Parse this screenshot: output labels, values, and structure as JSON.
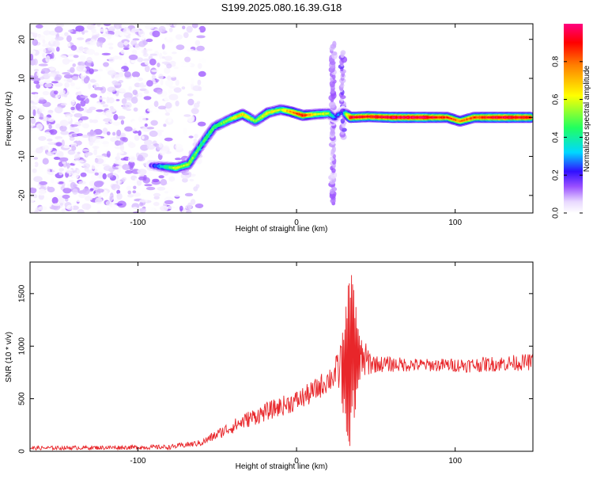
{
  "figure": {
    "title": "S199.2025.080.16.39.G18"
  },
  "chart_data": [
    {
      "type": "heatmap",
      "xlabel": "Height of straight line (km)",
      "ylabel": "Frequency (Hz)",
      "xlim": [
        -168,
        149
      ],
      "ylim": [
        -24.5,
        24
      ],
      "xticks": [
        -100,
        0,
        100
      ],
      "yticks": [
        -20,
        -10,
        0,
        10,
        20
      ],
      "colorbar": {
        "label": "Normalized spectral amplitude",
        "range": [
          0,
          1
        ],
        "ticks": [
          0.0,
          0.2,
          0.4,
          0.6,
          0.8
        ],
        "tick_labels": [
          "0.0",
          "0.2",
          "0.4",
          "0.6",
          "0.8"
        ],
        "colormap": [
          "#ffffff",
          "#e8d8ff",
          "#7a2cff",
          "#3010ff",
          "#00d8ff",
          "#20ff60",
          "#ffff00",
          "#ff8000",
          "#ff0000",
          "#ff0080"
        ]
      },
      "background_noise": {
        "x_range": [
          -168,
          -63
        ],
        "level": [
          0.0,
          0.15
        ]
      },
      "ridge": [
        {
          "x": -92,
          "y": -12.3,
          "v": 0.14
        },
        {
          "x": -76,
          "y": -13.0,
          "v": 0.6
        },
        {
          "x": -68,
          "y": -12.0,
          "v": 0.55
        },
        {
          "x": -60,
          "y": -7.0,
          "v": 0.45
        },
        {
          "x": -52,
          "y": -2.5,
          "v": 0.45
        },
        {
          "x": -42,
          "y": -0.5,
          "v": 0.55
        },
        {
          "x": -34,
          "y": 0.8,
          "v": 0.7
        },
        {
          "x": -26,
          "y": -1.0,
          "v": 0.5
        },
        {
          "x": -18,
          "y": 1.2,
          "v": 0.65
        },
        {
          "x": -10,
          "y": 2.0,
          "v": 0.55
        },
        {
          "x": -4,
          "y": 1.5,
          "v": 0.75
        },
        {
          "x": 4,
          "y": 0.5,
          "v": 0.9
        },
        {
          "x": 12,
          "y": 0.8,
          "v": 0.6
        },
        {
          "x": 20,
          "y": 1.0,
          "v": 0.55
        },
        {
          "x": 24,
          "y": 0.0,
          "v": 0.3
        },
        {
          "x": 29,
          "y": 1.5,
          "v": 0.2
        },
        {
          "x": 34,
          "y": 0.0,
          "v": 0.95
        },
        {
          "x": 45,
          "y": 0.2,
          "v": 0.9
        },
        {
          "x": 60,
          "y": 0.0,
          "v": 0.97
        },
        {
          "x": 80,
          "y": 0.0,
          "v": 0.96
        },
        {
          "x": 95,
          "y": 0.0,
          "v": 0.85
        },
        {
          "x": 103,
          "y": -1.0,
          "v": 0.75
        },
        {
          "x": 112,
          "y": 0.0,
          "v": 0.85
        },
        {
          "x": 130,
          "y": 0.0,
          "v": 0.96
        },
        {
          "x": 148,
          "y": 0.0,
          "v": 0.9
        }
      ],
      "vertical_streaks": [
        {
          "x": 23,
          "y_range": [
            -22,
            19
          ],
          "v": 0.12
        },
        {
          "x": 29,
          "y_range": [
            -5,
            17
          ],
          "v": 0.15
        }
      ]
    },
    {
      "type": "line",
      "xlabel": "Height of straight line (km)",
      "ylabel": "SNR (10 * v/v)",
      "xlim": [
        -168,
        149
      ],
      "ylim": [
        0,
        1800
      ],
      "xticks": [
        -100,
        0,
        100
      ],
      "yticks": [
        0,
        500,
        1000,
        1500
      ],
      "series": [
        {
          "color": "#e8262a",
          "envelope": [
            {
              "x": -168,
              "y": 30,
              "noise": 18
            },
            {
              "x": -80,
              "y": 40,
              "noise": 22
            },
            {
              "x": -60,
              "y": 80,
              "noise": 30
            },
            {
              "x": -45,
              "y": 200,
              "noise": 60
            },
            {
              "x": -30,
              "y": 310,
              "noise": 80
            },
            {
              "x": -15,
              "y": 400,
              "noise": 90
            },
            {
              "x": 0,
              "y": 480,
              "noise": 100
            },
            {
              "x": 10,
              "y": 560,
              "noise": 110
            },
            {
              "x": 20,
              "y": 680,
              "noise": 120
            },
            {
              "x": 26,
              "y": 760,
              "noise": 180
            },
            {
              "x": 30,
              "y": 820,
              "noise": 500
            },
            {
              "x": 33,
              "y": 900,
              "noise": 900
            },
            {
              "x": 36,
              "y": 950,
              "noise": 700
            },
            {
              "x": 40,
              "y": 880,
              "noise": 220
            },
            {
              "x": 50,
              "y": 830,
              "noise": 80
            },
            {
              "x": 80,
              "y": 820,
              "noise": 60
            },
            {
              "x": 110,
              "y": 820,
              "noise": 70
            },
            {
              "x": 149,
              "y": 850,
              "noise": 80
            }
          ]
        }
      ]
    }
  ]
}
